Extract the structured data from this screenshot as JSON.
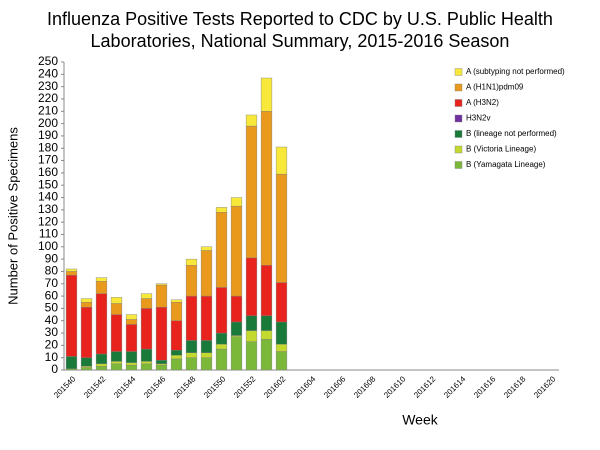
{
  "chart_data": {
    "type": "stacked-bar",
    "title": "Influenza Positive Tests Reported to CDC by U.S. Public Health Laboratories, National Summary, 2015-2016 Season",
    "x_label": "Week",
    "y_label": "Number of Positive  Specimens",
    "categories": [
      "201540",
      null,
      "201542",
      null,
      "201544",
      null,
      "201546",
      null,
      "201548",
      null,
      "201550",
      null,
      "201552",
      null,
      "201602",
      null,
      "201604",
      null,
      "201606",
      null,
      "201608",
      null,
      "201610",
      null,
      "201612",
      null,
      "201614",
      null,
      "201616",
      null,
      "201618",
      null,
      "201620"
    ],
    "series": [
      {
        "name": "B (Yamagata Lineage)",
        "color": "#7bb83a",
        "values": [
          1,
          2,
          3,
          5,
          4,
          5,
          4,
          9,
          10,
          10,
          17,
          27,
          23,
          25,
          15,
          null,
          null,
          null,
          null,
          null,
          null,
          null,
          null,
          null,
          null,
          null,
          null,
          null,
          null,
          null,
          null,
          null,
          null
        ]
      },
      {
        "name": "B (Victoria Lineage)",
        "color": "#c4d92e",
        "values": [
          0,
          1,
          2,
          2,
          2,
          2,
          1,
          3,
          4,
          4,
          4,
          1,
          9,
          7,
          6,
          null,
          null,
          null,
          null,
          null,
          null,
          null,
          null,
          null,
          null,
          null,
          null,
          null,
          null,
          null,
          null,
          null,
          null
        ]
      },
      {
        "name": "B (lineage not performed)",
        "color": "#1a7a3a",
        "values": [
          10,
          7,
          8,
          8,
          9,
          10,
          3,
          4,
          10,
          10,
          9,
          11,
          12,
          12,
          18,
          null,
          null,
          null,
          null,
          null,
          null,
          null,
          null,
          null,
          null,
          null,
          null,
          null,
          null,
          null,
          null,
          null,
          null
        ]
      },
      {
        "name": "H3N2v",
        "color": "#7030a0",
        "values": [
          0,
          0,
          0,
          0,
          0,
          0,
          0,
          0,
          0,
          0,
          0,
          0,
          0,
          0,
          0,
          null,
          null,
          null,
          null,
          null,
          null,
          null,
          null,
          null,
          null,
          null,
          null,
          null,
          null,
          null,
          null,
          null,
          null
        ]
      },
      {
        "name": "A (H3N2)",
        "color": "#e8221c",
        "values": [
          66,
          41,
          49,
          30,
          22,
          33,
          43,
          24,
          36,
          36,
          37,
          21,
          47,
          41,
          32,
          null,
          null,
          null,
          null,
          null,
          null,
          null,
          null,
          null,
          null,
          null,
          null,
          null,
          null,
          null,
          null,
          null,
          null
        ]
      },
      {
        "name": "A (H1N1)pdm09",
        "color": "#e99a1c",
        "values": [
          3,
          4,
          10,
          9,
          4,
          8,
          18,
          15,
          25,
          37,
          61,
          73,
          107,
          125,
          88,
          null,
          null,
          null,
          null,
          null,
          null,
          null,
          null,
          null,
          null,
          null,
          null,
          null,
          null,
          null,
          null,
          null,
          null
        ]
      },
      {
        "name": "A (subtyping not performed)",
        "color": "#f7e83a",
        "values": [
          2,
          3,
          3,
          5,
          4,
          4,
          1,
          2,
          5,
          3,
          4,
          7,
          9,
          27,
          22,
          null,
          null,
          null,
          null,
          null,
          null,
          null,
          null,
          null,
          null,
          null,
          null,
          null,
          null,
          null,
          null,
          null,
          null
        ]
      }
    ],
    "ylim": [
      0,
      250
    ],
    "yticks": [
      0,
      10,
      20,
      30,
      40,
      50,
      60,
      70,
      80,
      90,
      100,
      110,
      120,
      130,
      140,
      150,
      160,
      170,
      180,
      190,
      200,
      210,
      220,
      230,
      240,
      250
    ]
  }
}
